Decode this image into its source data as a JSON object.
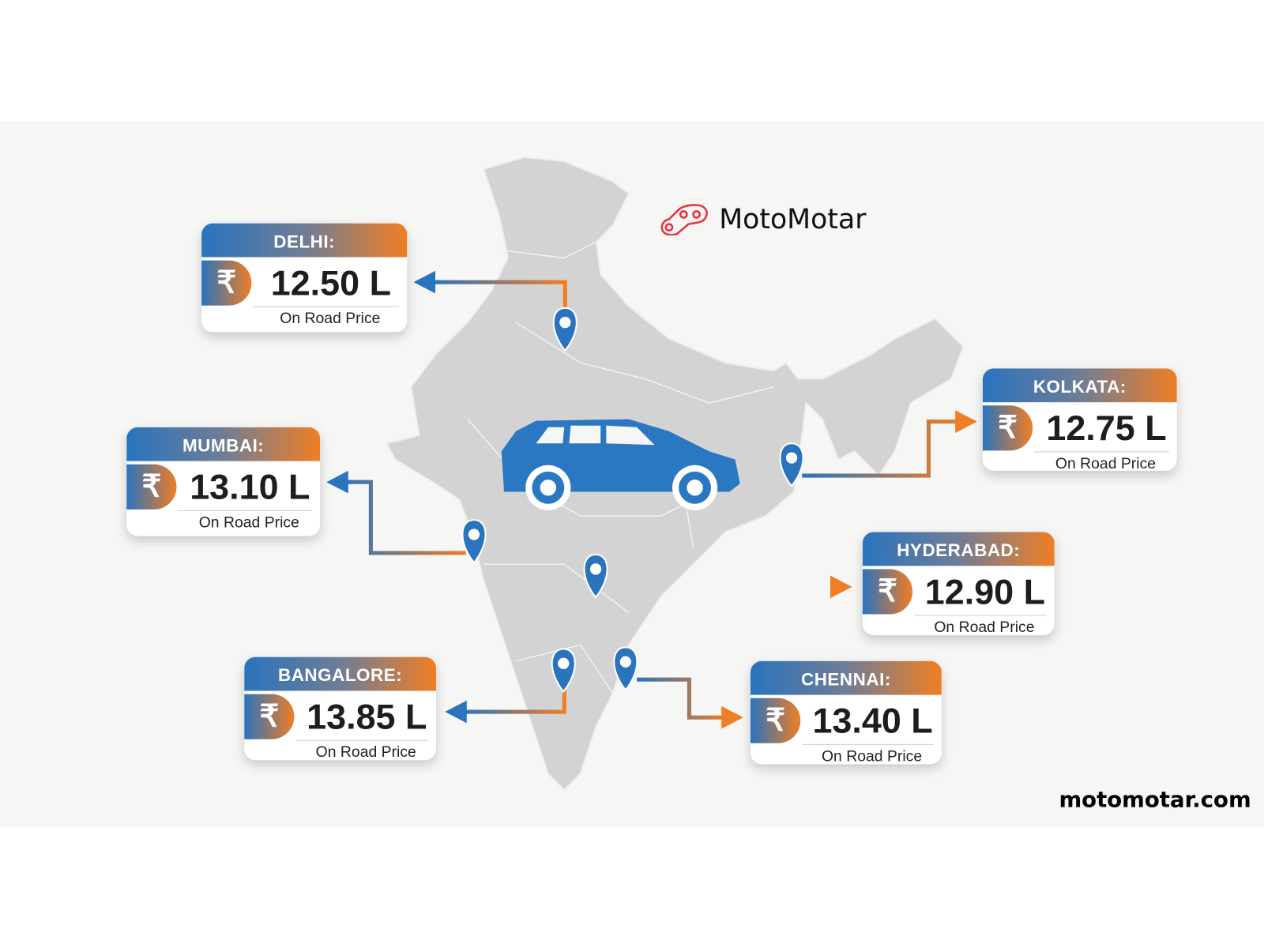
{
  "brand": {
    "name": "MotoMotar",
    "logo_icon": "chain-link-icon",
    "logo_color": "#e8323c"
  },
  "website": "motomotar.com",
  "colors": {
    "blue": "#2a73bd",
    "orange": "#f07e24",
    "map": "#d3d3d3",
    "car": "#2a78c2"
  },
  "price_sublabel": "On Road Price",
  "currency_symbol": "₹",
  "cities": [
    {
      "name": "DELHI:",
      "price": "12.50 L"
    },
    {
      "name": "MUMBAI:",
      "price": "13.10 L"
    },
    {
      "name": "KOLKATA:",
      "price": "12.75 L"
    },
    {
      "name": "HYDERABAD:",
      "price": "12.90 L"
    },
    {
      "name": "BANGALORE:",
      "price": "13.85 L"
    },
    {
      "name": "CHENNAI:",
      "price": "13.40 L"
    }
  ]
}
